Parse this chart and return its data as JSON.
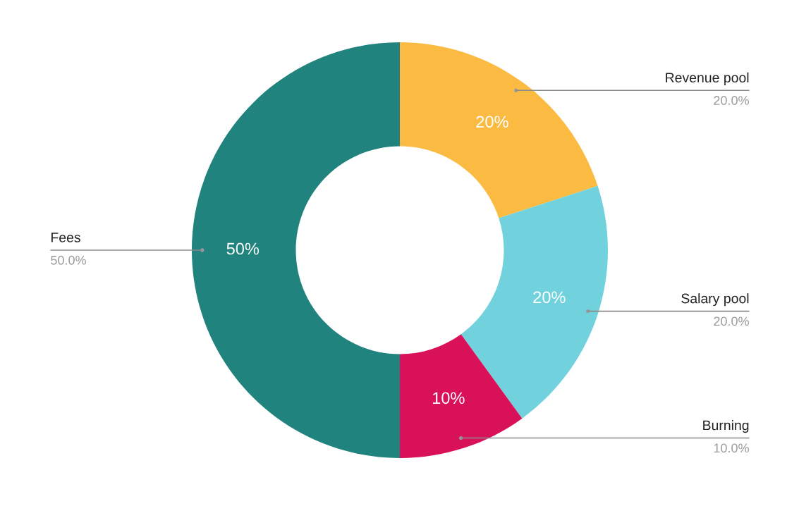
{
  "chart_data": {
    "type": "donut",
    "categories": [
      "Revenue pool",
      "Salary pool",
      "Burning",
      "Fees"
    ],
    "values": [
      20,
      20,
      10,
      50
    ],
    "colors": [
      "#fbbb42",
      "#71d2de",
      "#d81159",
      "#20837e"
    ],
    "value_labels": [
      "20%",
      "20%",
      "10%",
      "50%"
    ],
    "annotations": [
      {
        "text": "20.0%",
        "x": "Revenue pool"
      },
      {
        "text": "20.0%",
        "x": "Salary pool"
      },
      {
        "text": "10.0%",
        "x": "Burning"
      },
      {
        "text": "50.0%",
        "x": "Fees"
      }
    ]
  }
}
